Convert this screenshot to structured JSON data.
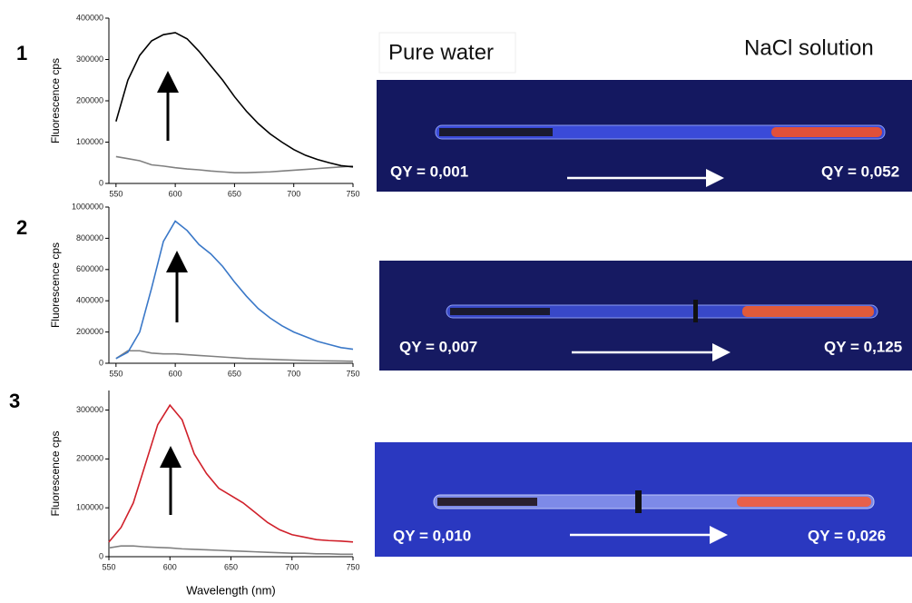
{
  "panel_numbers": [
    "1",
    "2",
    "3"
  ],
  "header": {
    "left": "Pure water",
    "right": "NaCl solution"
  },
  "photos": [
    {
      "left": "QY = 0,001",
      "right": "QY = 0,052"
    },
    {
      "left": "QY = 0,007",
      "right": "QY = 0,125"
    },
    {
      "left": "QY = 0,010",
      "right": "QY = 0,026"
    }
  ],
  "chart_data": [
    {
      "type": "line",
      "ylabel": "Fluorescence cps",
      "x": [
        550,
        560,
        570,
        580,
        590,
        600,
        610,
        620,
        630,
        640,
        650,
        660,
        670,
        680,
        690,
        700,
        710,
        720,
        730,
        740,
        750
      ],
      "series": [
        {
          "color": "#000000",
          "values": [
            150000,
            250000,
            310000,
            345000,
            360000,
            365000,
            350000,
            320000,
            285000,
            250000,
            210000,
            175000,
            145000,
            120000,
            100000,
            82000,
            68000,
            58000,
            50000,
            43000,
            40000
          ]
        },
        {
          "color": "#808080",
          "values": [
            65000,
            60000,
            55000,
            45000,
            42000,
            38000,
            35000,
            33000,
            30000,
            28000,
            26000,
            26000,
            27000,
            28000,
            30000,
            32000,
            34000,
            36000,
            38000,
            40000,
            42000
          ]
        }
      ],
      "xlim": [
        544,
        750
      ],
      "xticks": [
        550,
        600,
        650,
        700,
        750
      ],
      "ylim": [
        0,
        400000
      ],
      "yticks": [
        0,
        100000,
        200000,
        300000,
        400000
      ]
    },
    {
      "type": "line",
      "ylabel": "Fluorescence cps",
      "x": [
        550,
        560,
        570,
        580,
        590,
        600,
        610,
        620,
        630,
        640,
        650,
        660,
        670,
        680,
        690,
        700,
        710,
        720,
        730,
        740,
        750
      ],
      "series": [
        {
          "color": "#3a78c8",
          "values": [
            30000,
            70000,
            200000,
            480000,
            780000,
            910000,
            850000,
            760000,
            700000,
            620000,
            520000,
            430000,
            350000,
            290000,
            240000,
            200000,
            170000,
            140000,
            120000,
            100000,
            90000
          ]
        },
        {
          "color": "#808080",
          "values": [
            30000,
            80000,
            80000,
            65000,
            60000,
            60000,
            55000,
            50000,
            45000,
            40000,
            35000,
            30000,
            27000,
            25000,
            22000,
            20000,
            18000,
            16000,
            15000,
            14000,
            13000
          ]
        }
      ],
      "xlim": [
        544,
        750
      ],
      "xticks": [
        550,
        600,
        650,
        700,
        750
      ],
      "ylim": [
        0,
        1000000
      ],
      "yticks": [
        0,
        200000,
        400000,
        600000,
        800000,
        1000000
      ]
    },
    {
      "type": "line",
      "ylabel": "Fluorescence cps",
      "xlabel": "Wavelength (nm)",
      "x": [
        550,
        560,
        570,
        580,
        590,
        600,
        610,
        620,
        630,
        640,
        650,
        660,
        670,
        680,
        690,
        700,
        710,
        720,
        730,
        740,
        750
      ],
      "series": [
        {
          "color": "#d0202a",
          "values": [
            30000,
            60000,
            110000,
            190000,
            270000,
            310000,
            280000,
            210000,
            170000,
            140000,
            125000,
            110000,
            90000,
            70000,
            55000,
            45000,
            40000,
            35000,
            33000,
            32000,
            30000
          ]
        },
        {
          "color": "#808080",
          "values": [
            18000,
            22000,
            22000,
            20000,
            19000,
            18000,
            16000,
            15000,
            14000,
            13000,
            12000,
            11000,
            10000,
            9000,
            8000,
            7000,
            7000,
            6000,
            6000,
            5000,
            5000
          ]
        }
      ],
      "xlim": [
        550,
        750
      ],
      "xticks": [
        550,
        600,
        650,
        700,
        750
      ],
      "ylim": [
        0,
        340000
      ],
      "yticks": [
        0,
        100000,
        200000,
        300000
      ]
    }
  ]
}
